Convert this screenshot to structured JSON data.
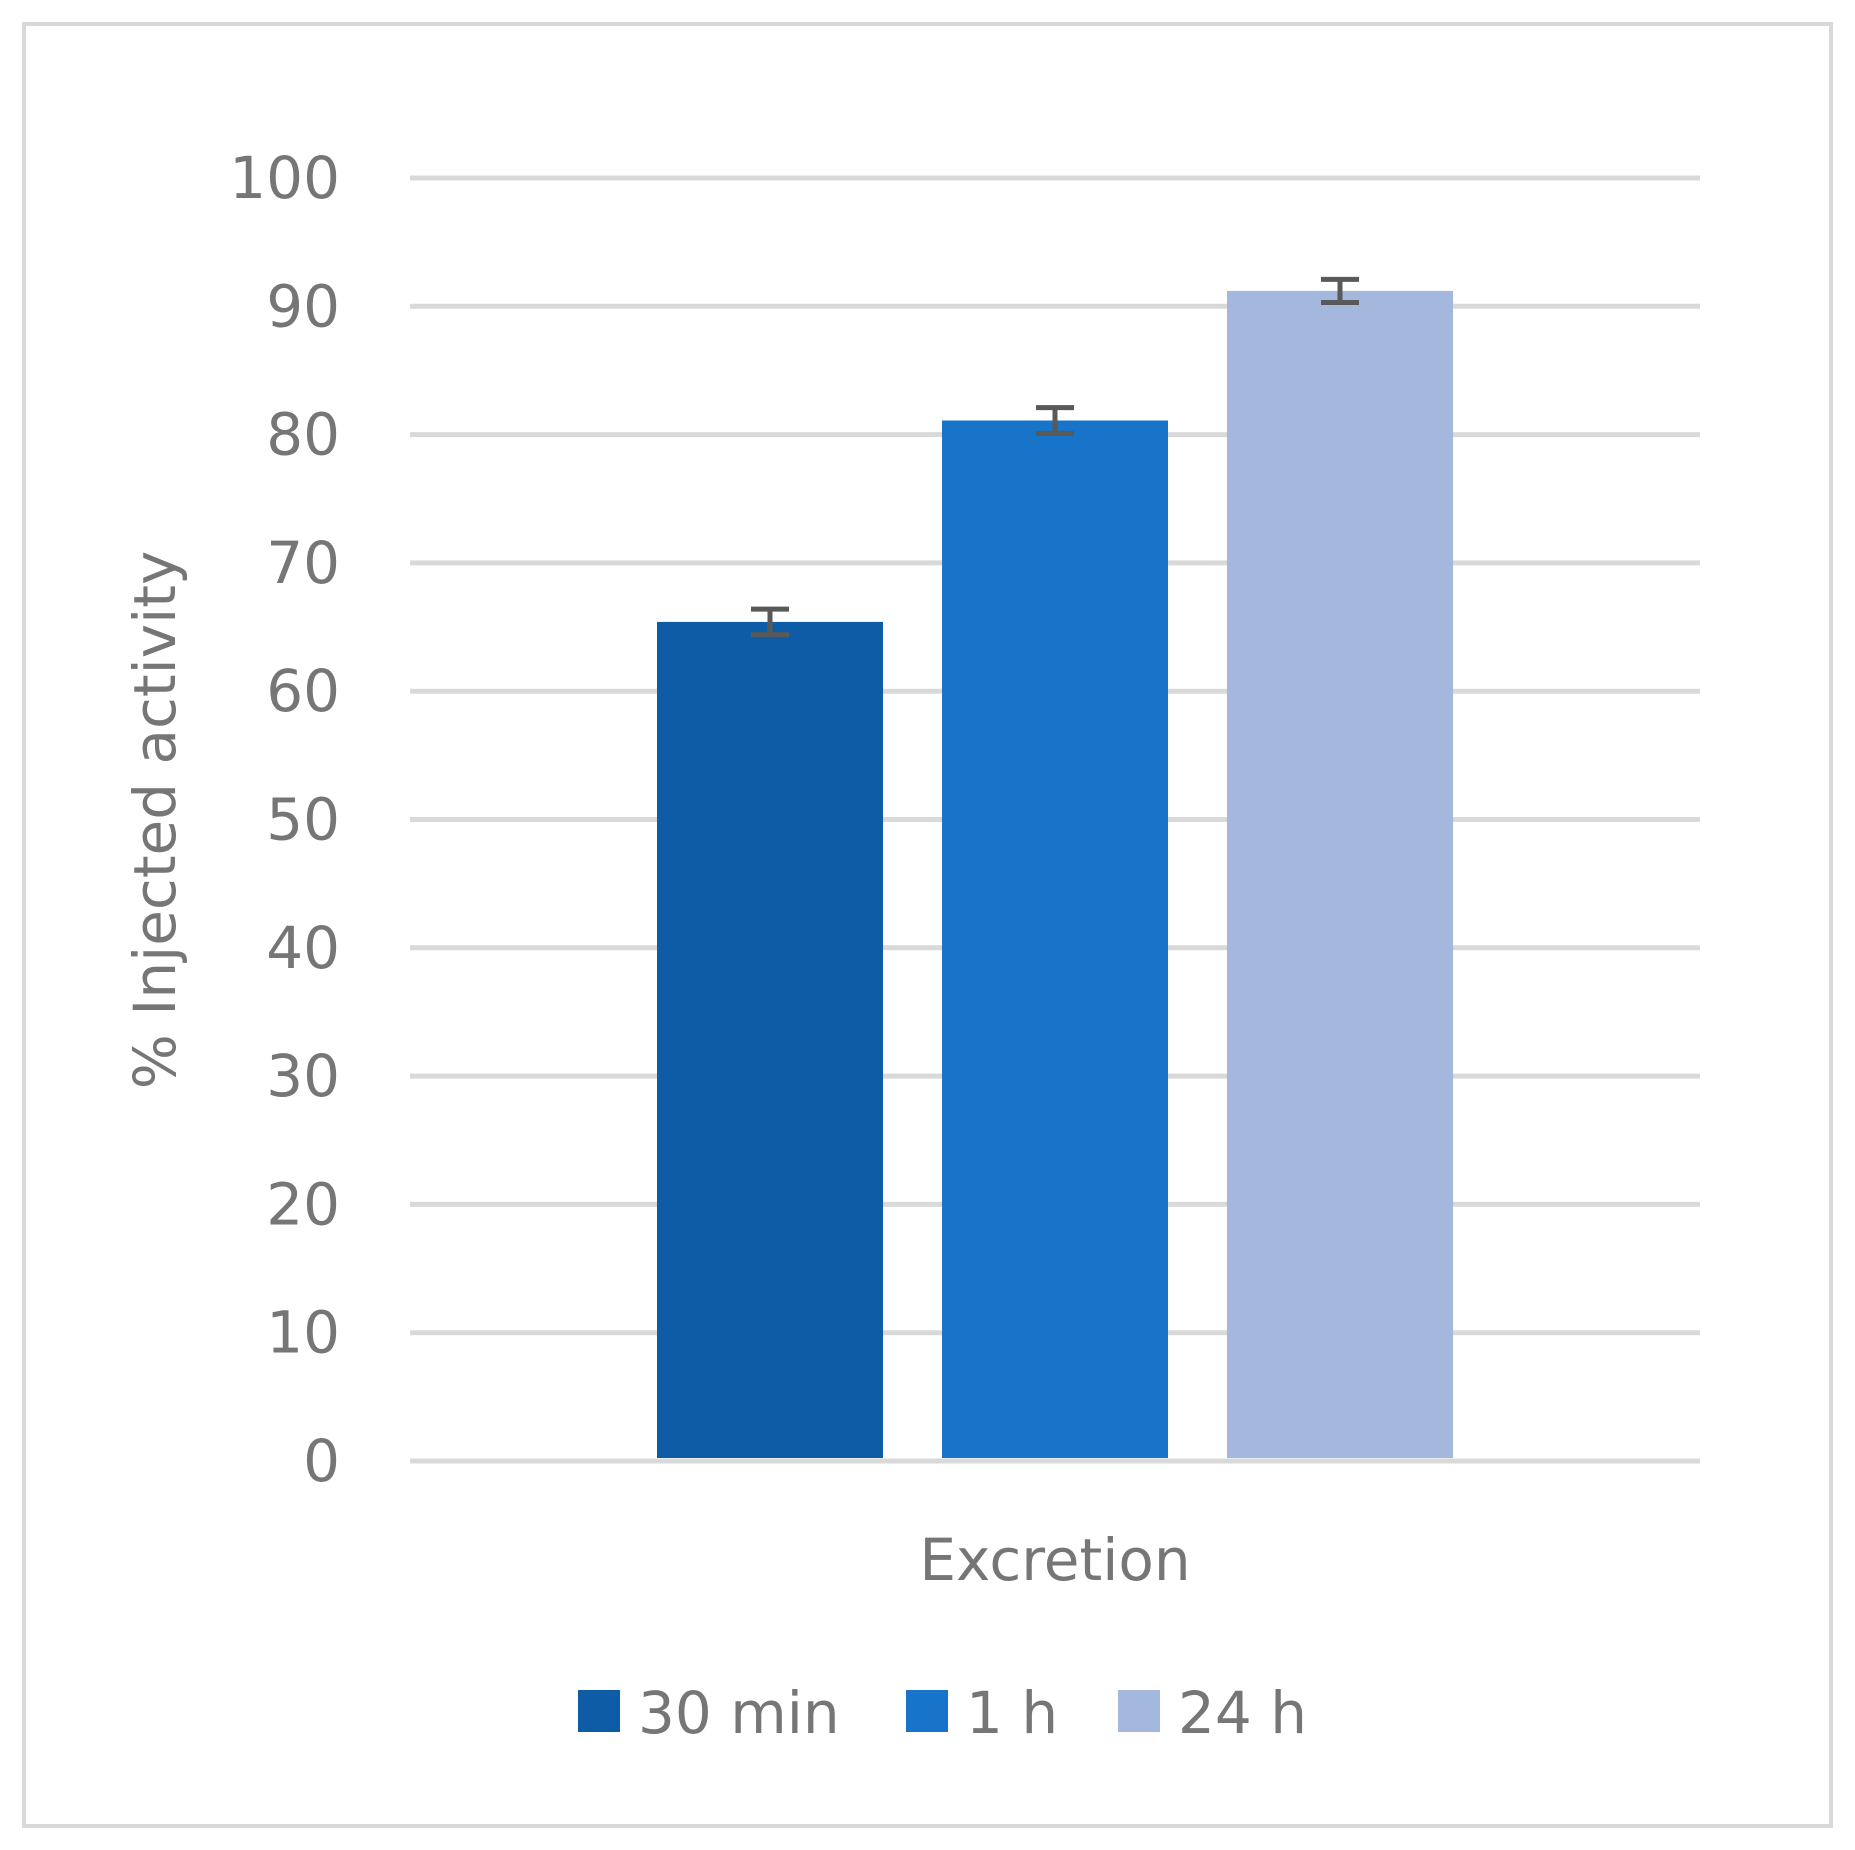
{
  "chart_data": {
    "type": "bar",
    "title": "",
    "xlabel": "",
    "ylabel": "% Injected activity",
    "categories": [
      "Excretion"
    ],
    "series": [
      {
        "name": "30 min",
        "values": [
          65.4
        ],
        "error": [
          1.0
        ],
        "color": "#0f5ca6"
      },
      {
        "name": "1 h",
        "values": [
          81.1
        ],
        "error": [
          1.0
        ],
        "color": "#1874c9"
      },
      {
        "name": "24 h",
        "values": [
          91.2
        ],
        "error": [
          0.9
        ],
        "color": "#a4b8dd"
      }
    ],
    "ylim": [
      0,
      100
    ],
    "yticks": [
      "0",
      "10",
      "20",
      "30",
      "40",
      "50",
      "60",
      "70",
      "80",
      "90",
      "100"
    ],
    "grid": true,
    "legend_position": "bottom"
  }
}
